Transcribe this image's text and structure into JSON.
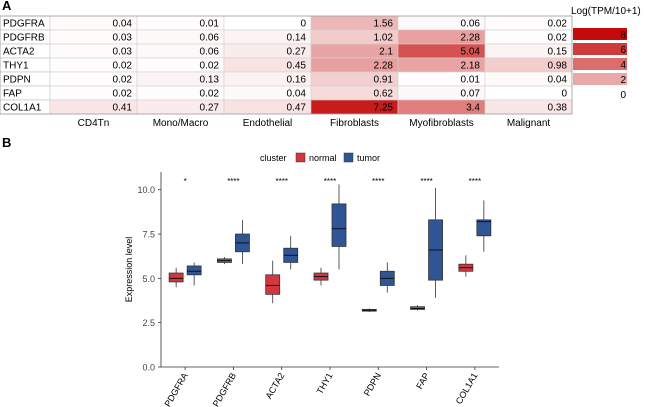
{
  "panel_a": {
    "label": "A",
    "legend_title": "Log(TPM/10+1)",
    "legend_levels": [
      {
        "value": 8,
        "label": "8"
      },
      {
        "value": 6,
        "label": "6"
      },
      {
        "value": 4,
        "label": "4"
      },
      {
        "value": 2,
        "label": "2"
      },
      {
        "value": 0,
        "label": "0"
      }
    ]
  },
  "panel_b": {
    "label": "B",
    "legend_title": "cluster",
    "legend_items": [
      {
        "name": "normal",
        "color": "#d2373f"
      },
      {
        "name": "tumor",
        "color": "#2f5596"
      }
    ]
  },
  "chart_data": [
    {
      "type": "heatmap",
      "title": "",
      "legend_title": "Log(TPM/10+1)",
      "rows": [
        "PDGFRA",
        "PDGFRB",
        "ACTA2",
        "THY1",
        "PDPN",
        "FAP",
        "COL1A1"
      ],
      "columns": [
        "CD4Tn",
        "Mono/Macro",
        "Endothelial",
        "Fibroblasts",
        "Myofibroblasts",
        "Malignant"
      ],
      "values": [
        [
          "0.04",
          "0.01",
          "0",
          "1.56",
          "0.06",
          "0.02"
        ],
        [
          "0.03",
          "0.06",
          "0.14",
          "1.02",
          "2.28",
          "0.02"
        ],
        [
          "0.03",
          "0.06",
          "0.27",
          "2.1",
          "5.04",
          "0.15"
        ],
        [
          "0.02",
          "0.02",
          "0.45",
          "2.28",
          "2.18",
          "0.98"
        ],
        [
          "0.02",
          "0.13",
          "0.16",
          "0.91",
          "0.01",
          "0.04"
        ],
        [
          "0.02",
          "0.02",
          "0.04",
          "0.62",
          "0.07",
          "0"
        ],
        [
          "0.41",
          "0.27",
          "0.47",
          "7.25",
          "3.4",
          "0.38"
        ]
      ],
      "color_min": 0,
      "color_max": 8
    },
    {
      "type": "box",
      "title": "",
      "xlabel": "",
      "ylabel": "Expression level",
      "ylim": [
        0,
        11
      ],
      "yticks": [
        "0.0",
        "2.5",
        "5.0",
        "7.5",
        "10.0"
      ],
      "categories": [
        "PDGFRA",
        "PDGFRB",
        "ACTA2",
        "THY1",
        "PDPN",
        "FAP",
        "COL1A1"
      ],
      "significance": [
        "*",
        "****",
        "****",
        "****",
        "****",
        "****",
        "****"
      ],
      "series": [
        {
          "name": "normal",
          "color": "#d2373f",
          "boxes": [
            {
              "min": 4.5,
              "q1": 4.8,
              "median": 5.0,
              "q3": 5.3,
              "max": 5.6
            },
            {
              "min": 5.8,
              "q1": 5.9,
              "median": 6.0,
              "q3": 6.1,
              "max": 6.2
            },
            {
              "min": 3.6,
              "q1": 4.1,
              "median": 4.6,
              "q3": 5.2,
              "max": 6.0
            },
            {
              "min": 4.6,
              "q1": 4.9,
              "median": 5.1,
              "q3": 5.3,
              "max": 5.6
            },
            {
              "min": 3.1,
              "q1": 3.15,
              "median": 3.2,
              "q3": 3.25,
              "max": 3.3
            },
            {
              "min": 3.2,
              "q1": 3.25,
              "median": 3.3,
              "q3": 3.4,
              "max": 3.5
            },
            {
              "min": 5.1,
              "q1": 5.4,
              "median": 5.6,
              "q3": 5.8,
              "max": 6.3
            }
          ]
        },
        {
          "name": "tumor",
          "color": "#2f5596",
          "boxes": [
            {
              "min": 4.6,
              "q1": 5.2,
              "median": 5.4,
              "q3": 5.7,
              "max": 5.9
            },
            {
              "min": 5.8,
              "q1": 6.5,
              "median": 7.0,
              "q3": 7.5,
              "max": 8.3
            },
            {
              "min": 5.5,
              "q1": 5.9,
              "median": 6.3,
              "q3": 6.7,
              "max": 7.4
            },
            {
              "min": 5.5,
              "q1": 6.8,
              "median": 7.8,
              "q3": 9.2,
              "max": 10.3
            },
            {
              "min": 4.2,
              "q1": 4.6,
              "median": 5.0,
              "q3": 5.4,
              "max": 5.9
            },
            {
              "min": 3.9,
              "q1": 4.9,
              "median": 6.6,
              "q3": 8.3,
              "max": 10.1
            },
            {
              "min": 6.5,
              "q1": 7.4,
              "median": 8.2,
              "q3": 8.3,
              "max": 9.4
            }
          ]
        }
      ]
    }
  ]
}
